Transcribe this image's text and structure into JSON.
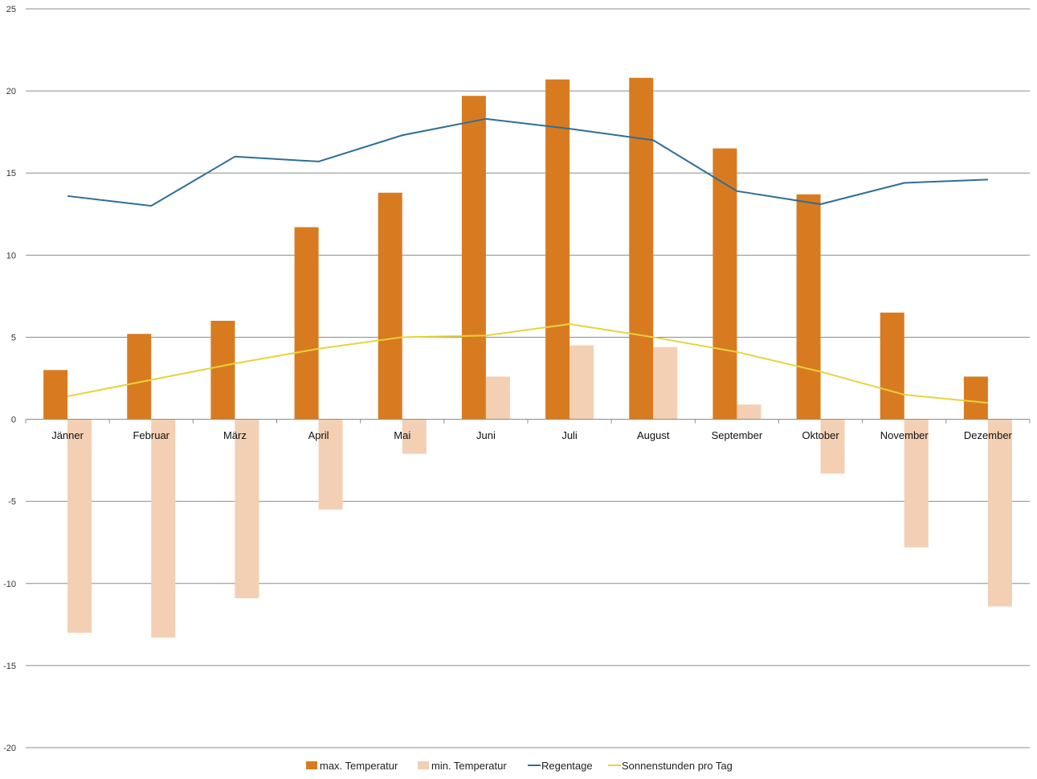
{
  "chart_data": {
    "type": "bar",
    "categories": [
      "Jänner",
      "Februar",
      "März",
      "April",
      "Mai",
      "Juni",
      "Juli",
      "August",
      "September",
      "Oktober",
      "November",
      "Dezember"
    ],
    "ylim": [
      -20,
      25
    ],
    "yticks": [
      25,
      20,
      15,
      10,
      5,
      0,
      -5,
      -10,
      -15,
      -20
    ],
    "grid": true,
    "legend_position": "bottom",
    "series": [
      {
        "name": "max. Temperatur",
        "type": "bar",
        "color": "#D87B20",
        "values": [
          3.0,
          5.2,
          6.0,
          11.7,
          13.8,
          19.7,
          20.7,
          20.8,
          16.5,
          13.7,
          6.5,
          2.6
        ]
      },
      {
        "name": "min. Temperatur",
        "type": "bar",
        "color": "#F3CFB3",
        "values": [
          -13.0,
          -13.3,
          -10.9,
          -5.5,
          -2.1,
          2.6,
          4.5,
          4.4,
          0.9,
          -3.3,
          -7.8,
          -11.4
        ]
      },
      {
        "name": "Regentage",
        "type": "line",
        "color": "#2E6E96",
        "values": [
          13.6,
          13.0,
          16.0,
          15.7,
          17.3,
          18.3,
          17.7,
          17.0,
          13.9,
          13.1,
          14.4,
          14.6
        ]
      },
      {
        "name": "Sonnenstunden pro Tag",
        "type": "line",
        "color": "#E8D33A",
        "values": [
          1.4,
          2.4,
          3.4,
          4.3,
          5.0,
          5.1,
          5.8,
          5.0,
          4.1,
          2.9,
          1.5,
          1.0
        ]
      }
    ]
  }
}
